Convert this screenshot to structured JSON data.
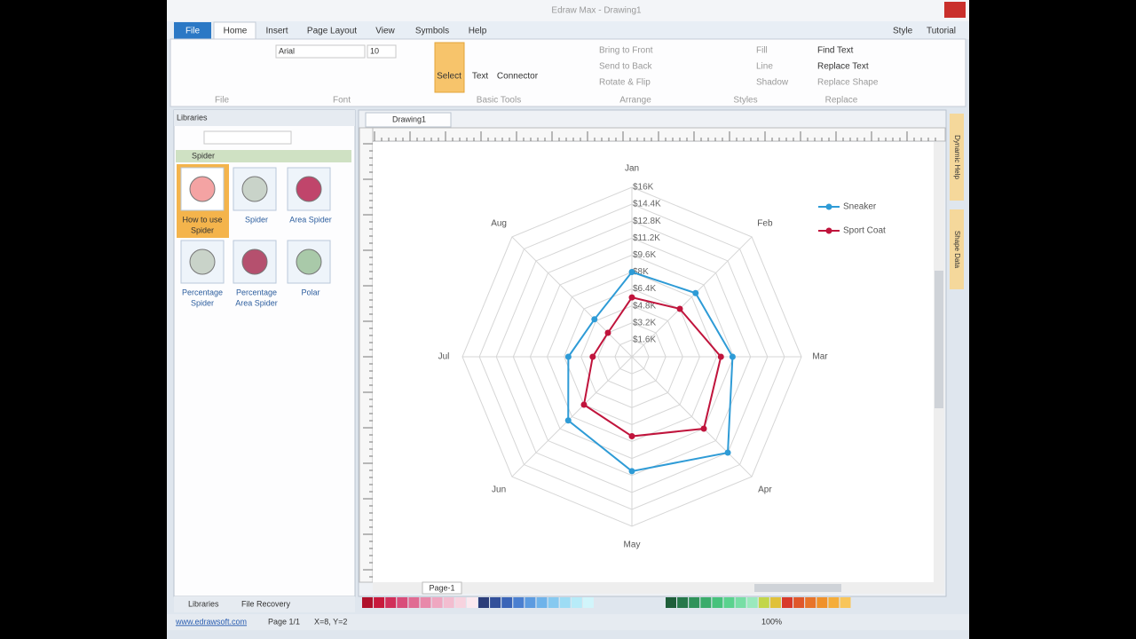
{
  "window": {
    "title": "Edraw Max - Drawing1"
  },
  "ribbon": {
    "tabs": [
      "File",
      "Home",
      "Insert",
      "Page Layout",
      "View",
      "Symbols",
      "Help"
    ],
    "tabs_right": [
      "Style",
      "Tutorial"
    ],
    "font": "Arial",
    "font_size": "10",
    "groups": [
      "File",
      "Font",
      "Basic Tools",
      "Arrange",
      "Styles",
      "Replace"
    ],
    "basic_tools": [
      "Select",
      "Text",
      "Connector"
    ],
    "arrange": [
      "Bring to Front",
      "Send to Back",
      "Rotate & Flip"
    ],
    "styles": [
      "Fill",
      "Line",
      "Shadow"
    ],
    "replace": [
      "Find Text",
      "Replace Text",
      "Replace Shape"
    ]
  },
  "libraries": {
    "title": "Libraries",
    "category": "Spider",
    "items": [
      [
        "How to use",
        "Spider"
      ],
      [
        "Spider"
      ],
      [
        "Area Spider"
      ],
      [
        "Percentage",
        "Spider"
      ],
      [
        "Percentage",
        "Area Spider"
      ],
      [
        "Polar"
      ]
    ],
    "bottom_tabs": [
      "Libraries",
      "File Recovery"
    ]
  },
  "document": {
    "tab": "Drawing1",
    "page_tab": "Page-1"
  },
  "side_panels": [
    "Dynamic Help",
    "Shape Data"
  ],
  "status": {
    "link": "www.edrawsoft.com",
    "page": "Page 1/1",
    "coords": "X=8, Y=2",
    "zoom": "100%"
  },
  "chart_data": {
    "type": "radar",
    "categories": [
      "Jan",
      "Feb",
      "Mar",
      "Apr",
      "May",
      "Jun",
      "Jul",
      "Aug"
    ],
    "ylim": [
      0,
      16000
    ],
    "yticks": [
      {
        "value": 1600,
        "label": "$1.6K"
      },
      {
        "value": 3200,
        "label": "$3.2K"
      },
      {
        "value": 4800,
        "label": "$4.8K"
      },
      {
        "value": 6400,
        "label": "$6.4K"
      },
      {
        "value": 8000,
        "label": "$8K"
      },
      {
        "value": 9600,
        "label": "$9.6K"
      },
      {
        "value": 11200,
        "label": "$11.2K"
      },
      {
        "value": 12800,
        "label": "$12.8K"
      },
      {
        "value": 14400,
        "label": "$14.4K"
      },
      {
        "value": 16000,
        "label": "$16K"
      }
    ],
    "grid": true,
    "legend": "top-right",
    "series": [
      {
        "name": "Sneaker",
        "color": "#2e9bd6",
        "values": [
          8000,
          8500,
          9500,
          12800,
          10800,
          8500,
          6000,
          5000
        ]
      },
      {
        "name": "Sport Coat",
        "color": "#c0143c",
        "values": [
          5600,
          6400,
          8400,
          9600,
          7500,
          6400,
          3700,
          3200
        ]
      }
    ]
  }
}
